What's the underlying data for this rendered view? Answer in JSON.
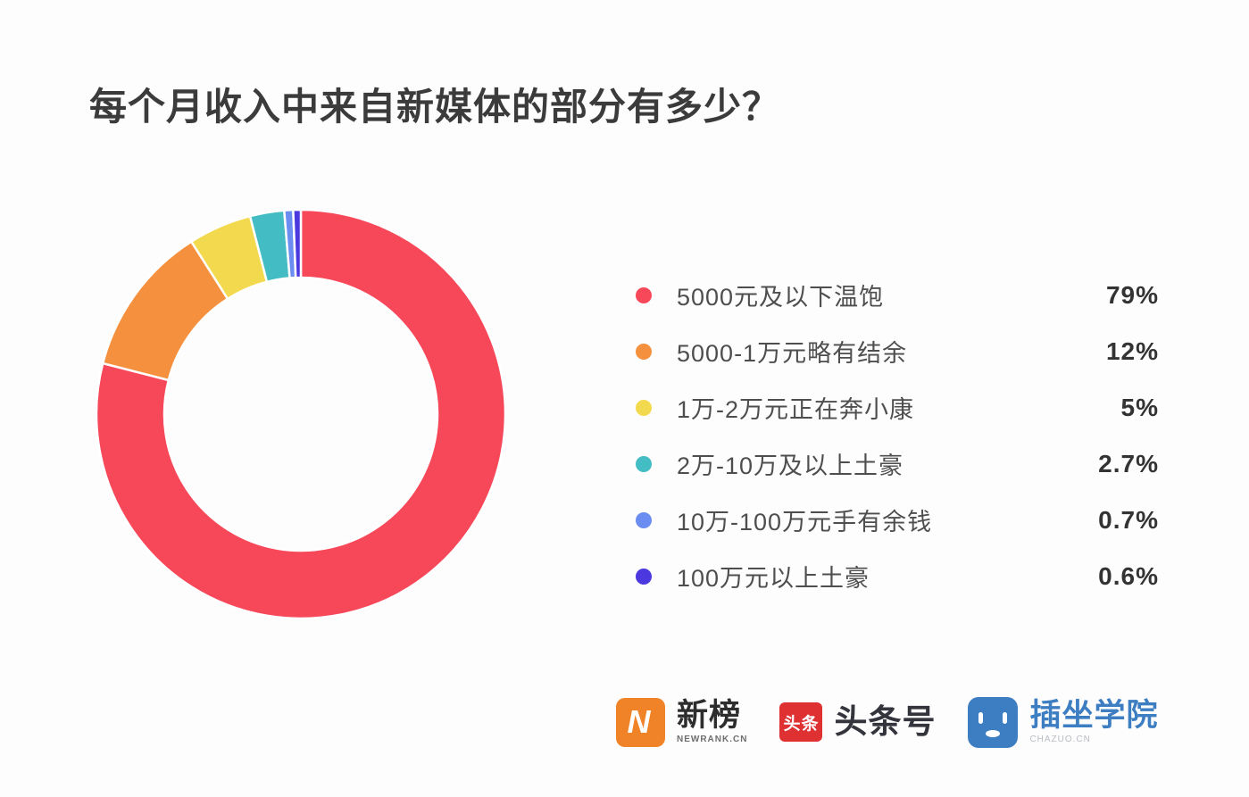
{
  "page": {
    "background": "#fdfdfd"
  },
  "title": "每个月收入中来自新媒体的部分有多少？",
  "chart_data": {
    "type": "pie",
    "subtype": "donut",
    "title": "每个月收入中来自新媒体的部分有多少？",
    "legend_position": "right",
    "start_angle_deg": 0,
    "direction": "clockwise",
    "inner_radius_ratio": 0.67,
    "categories": [
      "5000元及以下温饱",
      "5000-1万元略有结余",
      "1万-2万元正在奔小康",
      "2万-10万及以上土豪",
      "10万-100万元手有余钱",
      "100万元以上土豪"
    ],
    "values": [
      79,
      12,
      5,
      2.7,
      0.7,
      0.6
    ],
    "value_labels": [
      "79%",
      "12%",
      "5%",
      "2.7%",
      "0.7%",
      "0.6%"
    ],
    "colors": [
      "#f7485a",
      "#f5913e",
      "#f3d94e",
      "#43bcc4",
      "#6b8cf0",
      "#4b38df"
    ],
    "segment_gap_color": "#ffffff"
  },
  "legend": {
    "items": [
      {
        "label": "5000元及以下温饱",
        "value": "79%",
        "color": "#f7485a"
      },
      {
        "label": "5000-1万元略有结余",
        "value": "12%",
        "color": "#f5913e"
      },
      {
        "label": "1万-2万元正在奔小康",
        "value": "5%",
        "color": "#f3d94e"
      },
      {
        "label": "2万-10万及以上土豪",
        "value": "2.7%",
        "color": "#43bcc4"
      },
      {
        "label": "10万-100万元手有余钱",
        "value": "0.7%",
        "color": "#6b8cf0"
      },
      {
        "label": "100万元以上土豪",
        "value": "0.6%",
        "color": "#4b38df"
      }
    ]
  },
  "footer": {
    "newrank": {
      "name": "新榜",
      "caption": "NEWRANK.CN",
      "icon_letter": "N",
      "icon_color": "#f08327"
    },
    "toutiao": {
      "name": "头条号",
      "icon_text": "头条",
      "icon_color": "#df3032"
    },
    "chazuo": {
      "name": "插坐学院",
      "caption": "CHAZUO.CN",
      "icon_color": "#3d7ec2",
      "text_color": "#3d7ec2"
    }
  }
}
